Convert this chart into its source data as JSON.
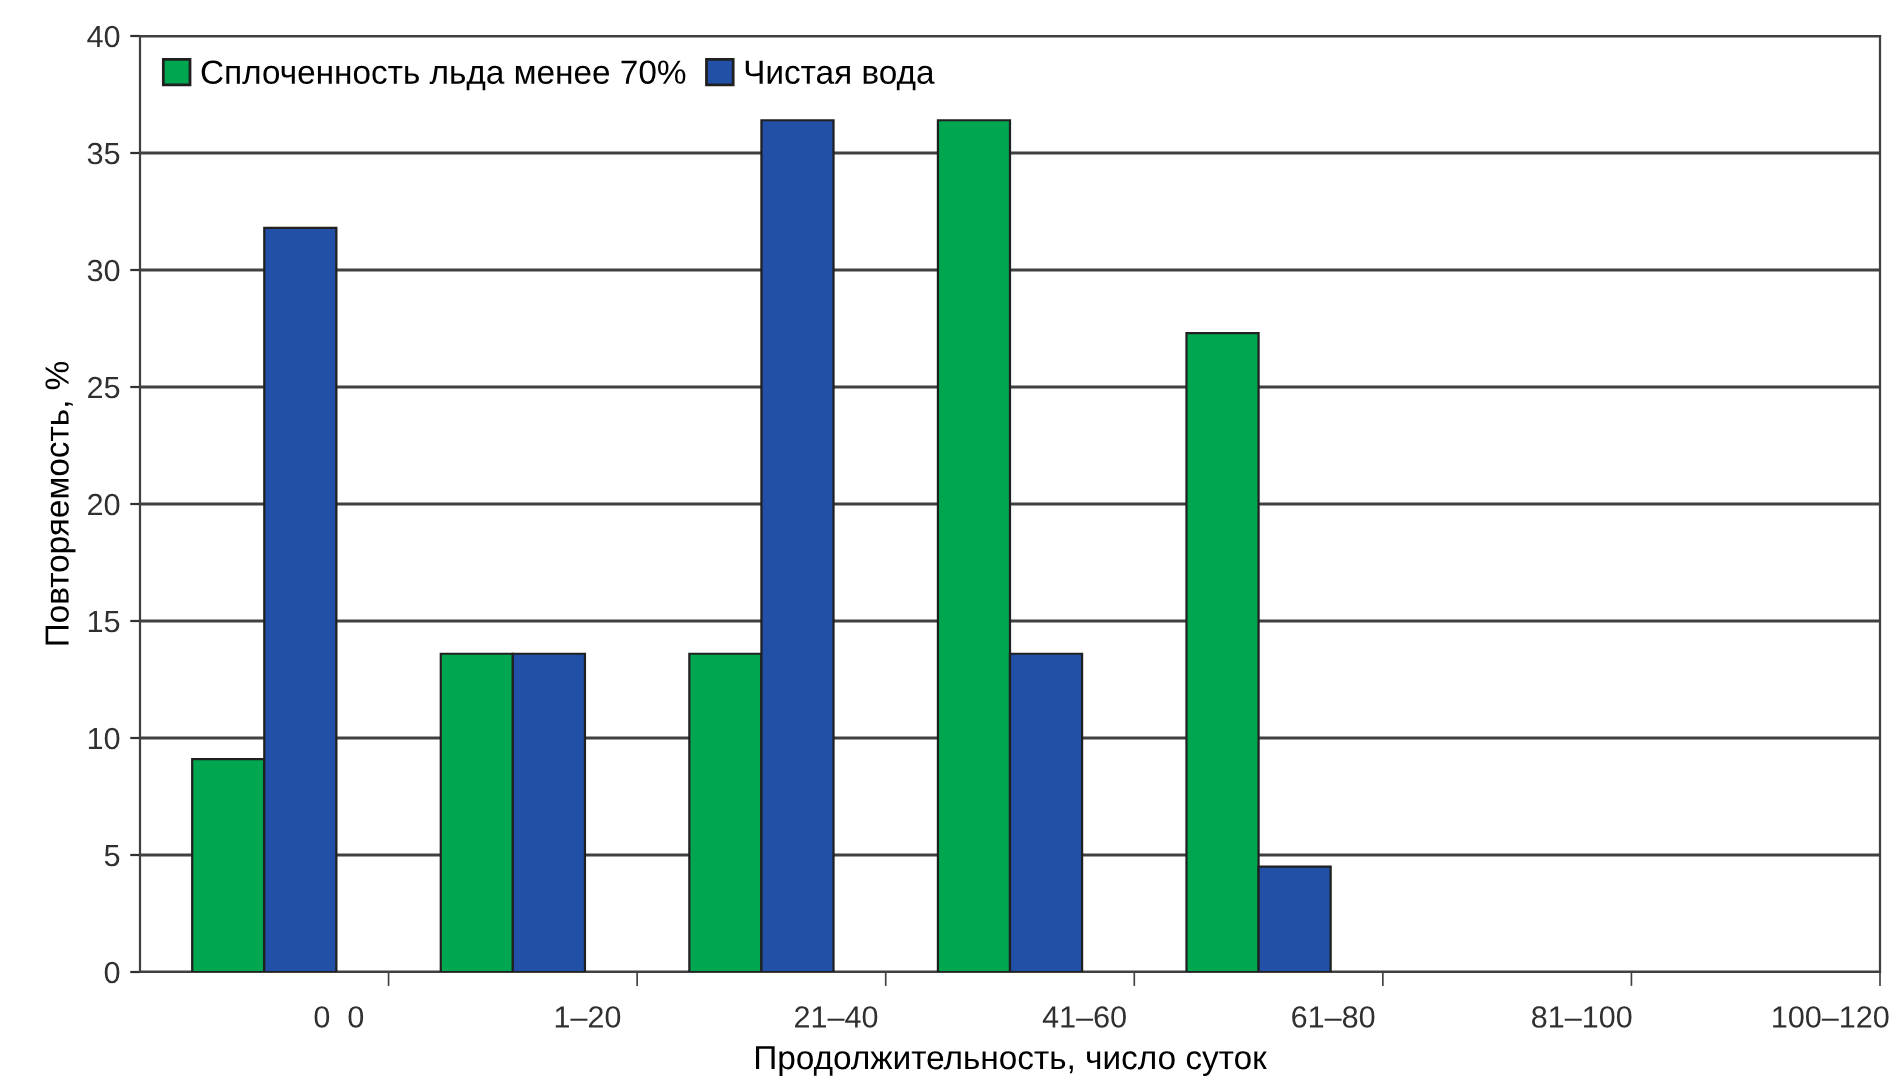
{
  "chart_data": {
    "type": "bar",
    "xlabel": "Продолжительность, число суток",
    "ylabel": "Повторяемость, %",
    "categories": [
      "0  0",
      "1–20",
      "21–40",
      "41–60",
      "61–80",
      "81–100",
      "100–120"
    ],
    "series": [
      {
        "name": "Сплоченность льда менее 70%",
        "color": "#00a650",
        "values": [
          9.1,
          13.6,
          13.6,
          36.4,
          27.3,
          0,
          0
        ]
      },
      {
        "name": "Чистая вода",
        "color": "#2150a6",
        "values": [
          31.8,
          13.6,
          36.4,
          13.6,
          4.5,
          0,
          0
        ]
      }
    ],
    "ylim": [
      0,
      40
    ],
    "yticks": [
      0,
      5,
      10,
      15,
      20,
      25,
      30,
      35,
      40
    ],
    "grid": "y",
    "legend": "top left"
  }
}
